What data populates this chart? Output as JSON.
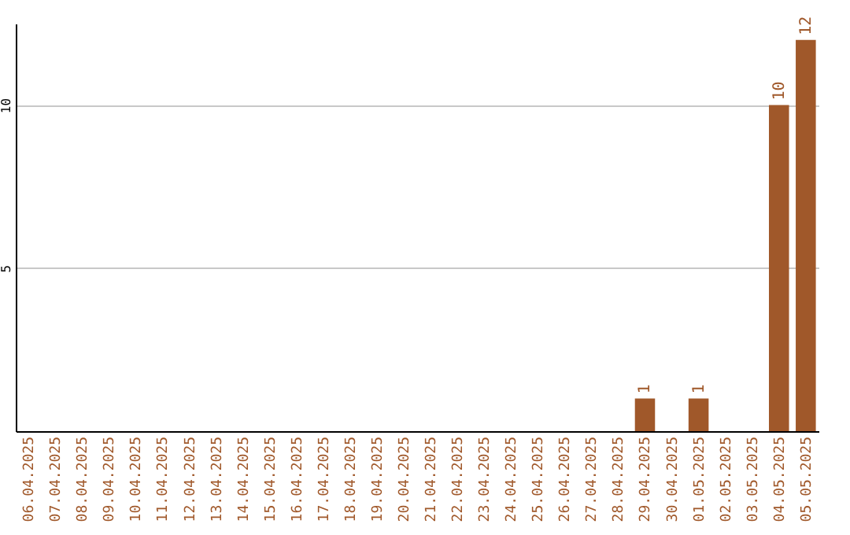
{
  "chart_data": {
    "type": "bar",
    "categories": [
      "06.04.2025",
      "07.04.2025",
      "08.04.2025",
      "09.04.2025",
      "10.04.2025",
      "11.04.2025",
      "12.04.2025",
      "13.04.2025",
      "14.04.2025",
      "15.04.2025",
      "16.04.2025",
      "17.04.2025",
      "18.04.2025",
      "19.04.2025",
      "20.04.2025",
      "21.04.2025",
      "22.04.2025",
      "23.04.2025",
      "24.04.2025",
      "25.04.2025",
      "26.04.2025",
      "27.04.2025",
      "28.04.2025",
      "29.04.2025",
      "30.04.2025",
      "01.05.2025",
      "02.05.2025",
      "03.05.2025",
      "04.05.2025",
      "05.05.2025"
    ],
    "values": [
      0,
      0,
      0,
      0,
      0,
      0,
      0,
      0,
      0,
      0,
      0,
      0,
      0,
      0,
      0,
      0,
      0,
      0,
      0,
      0,
      0,
      0,
      0,
      1,
      0,
      1,
      0,
      0,
      10,
      12
    ],
    "value_labels": [
      null,
      null,
      null,
      null,
      null,
      null,
      null,
      null,
      null,
      null,
      null,
      null,
      null,
      null,
      null,
      null,
      null,
      null,
      null,
      null,
      null,
      null,
      null,
      "1",
      null,
      "1",
      null,
      null,
      "10",
      "12"
    ],
    "color": "#a0582a",
    "ylim": [
      0,
      12.5
    ],
    "yticks": [
      5,
      10
    ],
    "grid": "y"
  }
}
